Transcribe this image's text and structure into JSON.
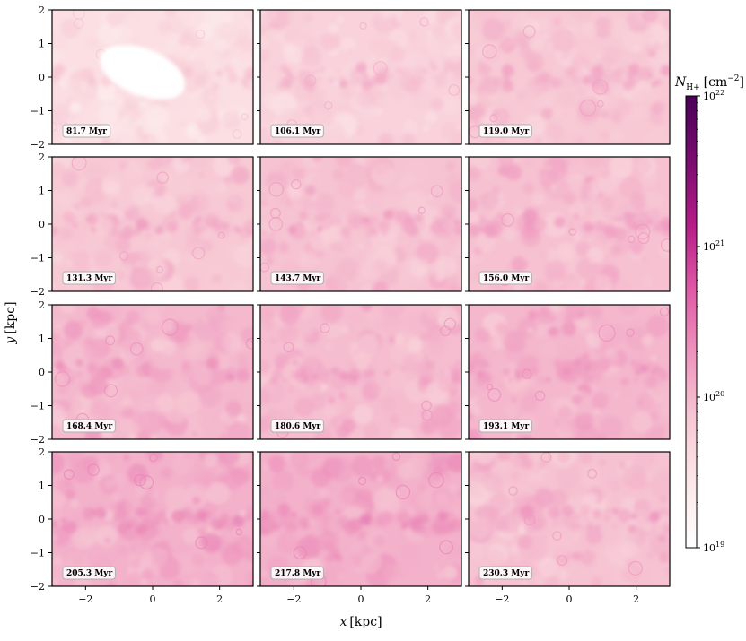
{
  "chart_data": {
    "type": "heatmap",
    "layout": {
      "rows": 4,
      "cols": 3
    },
    "panel_labels": [
      "81.7 Myr",
      "106.1 Myr",
      "119.0 Myr",
      "131.3 Myr",
      "143.7 Myr",
      "156.0 Myr",
      "168.4 Myr",
      "180.6 Myr",
      "193.1 Myr",
      "205.3 Myr",
      "217.8 Myr",
      "230.3 Myr"
    ],
    "x_axis": {
      "label_var": "x",
      "label_unit": "[kpc]",
      "range": [
        -3,
        3
      ],
      "ticks": [
        -2,
        0,
        2
      ],
      "tick_labels": [
        "−2",
        "0",
        "2"
      ]
    },
    "y_axis": {
      "label_var": "y",
      "label_unit": "[kpc]",
      "range": [
        -2,
        2
      ],
      "ticks": [
        -2,
        -1,
        0,
        1,
        2
      ],
      "tick_labels": [
        "−2",
        "−1",
        "0",
        "1",
        "2"
      ]
    },
    "colorbar": {
      "label_sym": "N",
      "label_sub": "H+",
      "label_unit_open": "[cm",
      "label_unit_exp": "−2",
      "label_unit_close": "]",
      "scale": "log",
      "range": [
        1e+19,
        1e+22
      ],
      "ticks": [
        {
          "value": 1e+19,
          "base": "10",
          "exp": "19"
        },
        {
          "value": 1e+20,
          "base": "10",
          "exp": "20"
        },
        {
          "value": 1e+21,
          "base": "10",
          "exp": "21"
        },
        {
          "value": 1e+22,
          "base": "10",
          "exp": "22"
        }
      ],
      "colors": [
        "#ffffff",
        "#fce8e9",
        "#f7c8d4",
        "#ee95bd",
        "#df5aa6",
        "#b51d87",
        "#7a0c6f",
        "#4b0057"
      ]
    },
    "panel_mean_log_density": [
      19.55,
      19.72,
      19.85,
      19.85,
      19.9,
      19.92,
      19.98,
      19.95,
      20.0,
      20.05,
      20.05,
      19.9
    ],
    "panel_hole_present": [
      true,
      false,
      false,
      false,
      false,
      false,
      false,
      false,
      false,
      false,
      false,
      false
    ]
  }
}
